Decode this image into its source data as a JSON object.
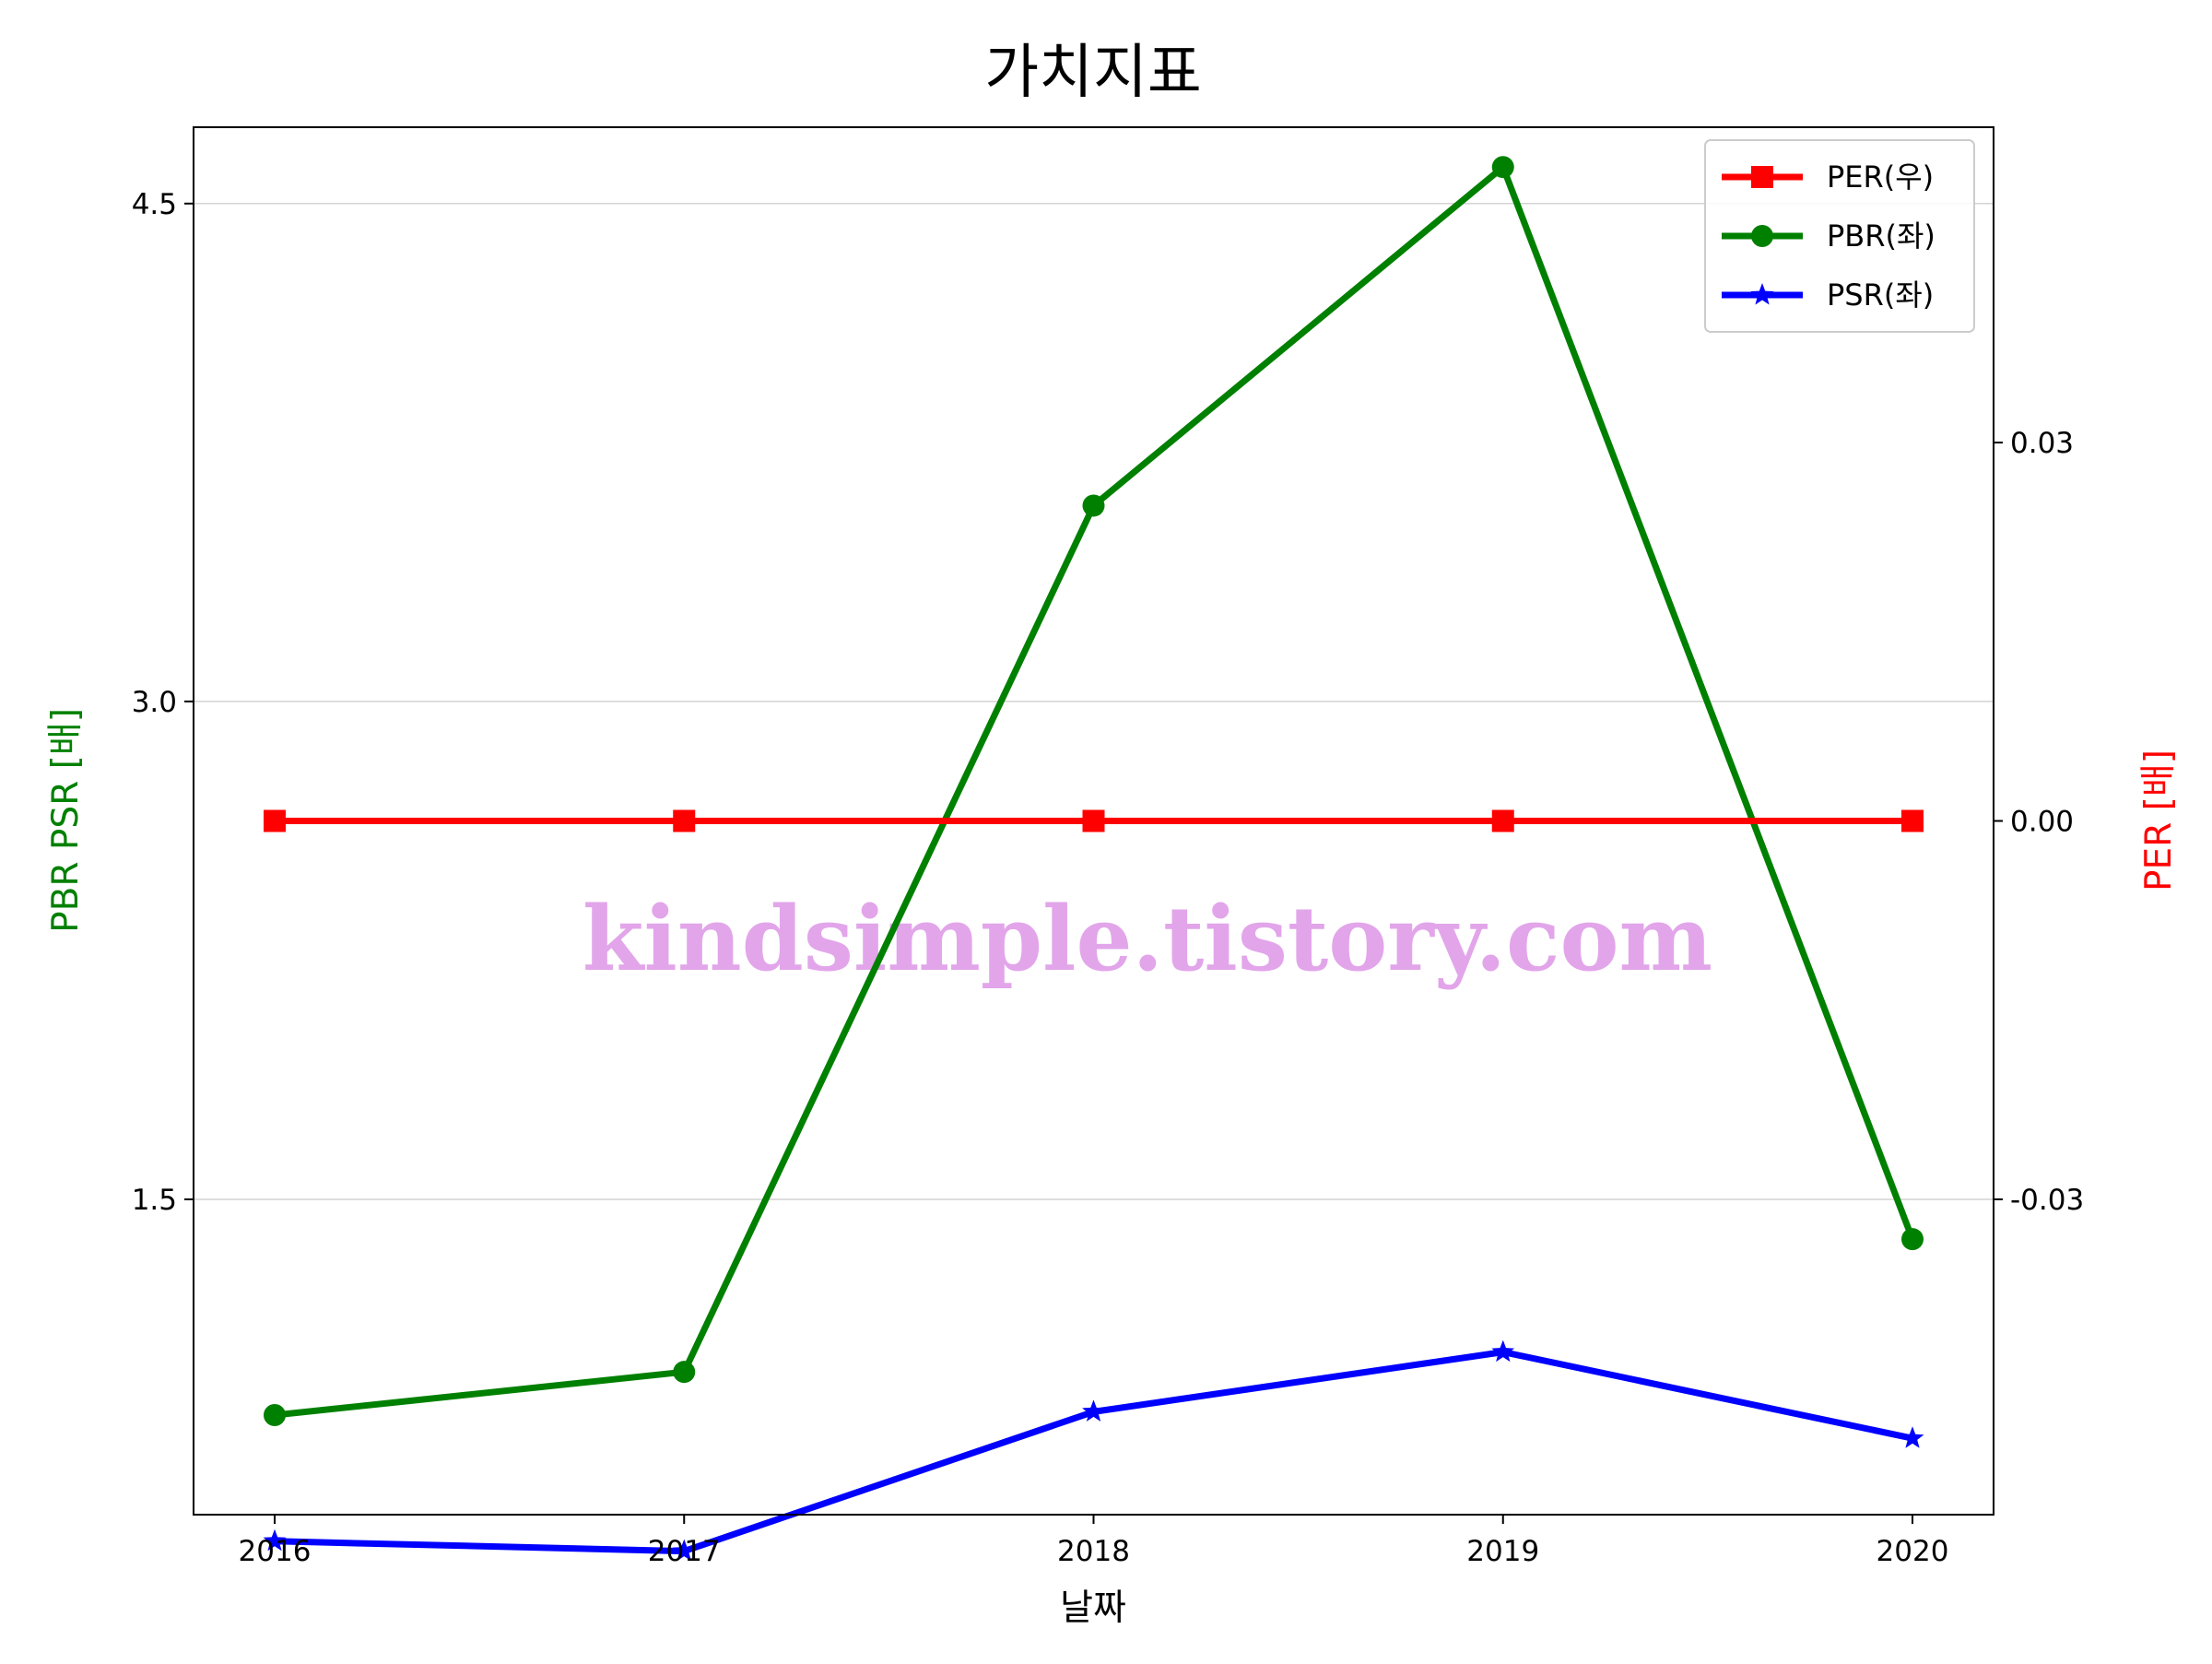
{
  "chart_data": {
    "type": "line",
    "title": "가치지표",
    "xlabel": "날짜",
    "ylabel_left": "PBR PSR [배]",
    "ylabel_right": "PER [배]",
    "x": [
      "2016",
      "2017",
      "2018",
      "2019",
      "2020"
    ],
    "ylim_left": [
      0.55,
      4.73
    ],
    "yticks_left": [
      "1.5",
      "3.0",
      "4.5"
    ],
    "yticks_left_values": [
      1.5,
      3.0,
      4.5
    ],
    "ylim_right": [
      -0.055,
      0.055
    ],
    "yticks_right": [
      "-0.03",
      "0.00",
      "0.03"
    ],
    "yticks_right_values": [
      -0.03,
      0.0,
      0.03
    ],
    "grid": "horizontal (left axis)",
    "legend_position": "top-right",
    "series": [
      {
        "name": "PER(우)",
        "axis": "right",
        "color": "#ff0000",
        "marker": "square",
        "values": [
          0.0,
          0.0,
          0.0,
          0.0,
          0.0
        ]
      },
      {
        "name": "PBR(좌)",
        "axis": "left",
        "color": "#008000",
        "marker": "circle",
        "values": [
          0.85,
          0.98,
          3.59,
          4.61,
          1.38
        ]
      },
      {
        "name": "PSR(좌)",
        "axis": "left",
        "color": "#0000ff",
        "marker": "star",
        "values": [
          0.47,
          0.44,
          0.86,
          1.04,
          0.78
        ]
      }
    ],
    "watermark": "kindsimple.tistory.com",
    "colors": {
      "left_label": "#008000",
      "right_label": "#ff0000",
      "grid": "#d3d3d3",
      "watermark": "#e2a5ea"
    }
  }
}
